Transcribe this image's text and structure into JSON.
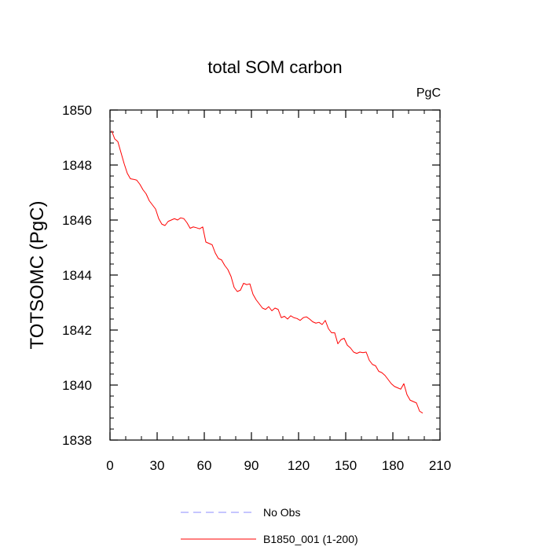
{
  "chart_data": {
    "type": "line",
    "title": "total SOM carbon",
    "units_label": "PgC",
    "xlabel": "",
    "ylabel": "TOTSOMC  (PgC)",
    "xlim": [
      0,
      210
    ],
    "ylim": [
      1838,
      1850
    ],
    "x_ticks": [
      0,
      30,
      60,
      90,
      120,
      150,
      180,
      210
    ],
    "x_tick_labels": [
      "0",
      "30",
      "60",
      "90",
      "120",
      "150",
      "180",
      "210"
    ],
    "y_ticks": [
      1838,
      1840,
      1842,
      1844,
      1846,
      1848,
      1850
    ],
    "y_tick_labels": [
      "1838",
      "1840",
      "1842",
      "1844",
      "1846",
      "1848",
      "1850"
    ],
    "x_minor_step": 10,
    "y_minor_step": 0.4,
    "grid": false,
    "legend_position": "bottom-center",
    "legend": [
      {
        "label": "No Obs",
        "color": "#8c8cff",
        "dash": "dashed"
      },
      {
        "label": "B1850_001 (1-200)",
        "color": "#ff0000",
        "dash": "solid"
      }
    ],
    "series": [
      {
        "name": "B1850_001 (1-200)",
        "color": "#ff0000",
        "x": [
          1,
          3,
          5,
          7,
          9,
          11,
          13,
          15,
          17,
          19,
          21,
          23,
          25,
          27,
          29,
          31,
          33,
          35,
          37,
          39,
          41,
          43,
          45,
          47,
          49,
          51,
          53,
          55,
          57,
          59,
          61,
          63,
          65,
          67,
          69,
          71,
          73,
          75,
          77,
          79,
          81,
          83,
          85,
          87,
          89,
          91,
          93,
          95,
          97,
          99,
          101,
          103,
          105,
          107,
          109,
          111,
          113,
          115,
          117,
          119,
          121,
          123,
          125,
          127,
          129,
          131,
          133,
          135,
          137,
          139,
          141,
          143,
          145,
          147,
          149,
          151,
          153,
          155,
          157,
          159,
          161,
          163,
          165,
          167,
          169,
          171,
          173,
          175,
          177,
          179,
          181,
          183,
          185,
          187,
          189,
          191,
          193,
          195,
          197,
          199
        ],
        "values": [
          1849.25,
          1848.95,
          1848.85,
          1848.45,
          1848.05,
          1847.7,
          1847.5,
          1847.48,
          1847.45,
          1847.3,
          1847.1,
          1846.95,
          1846.7,
          1846.55,
          1846.4,
          1846.05,
          1845.85,
          1845.8,
          1845.95,
          1846.0,
          1846.05,
          1846.0,
          1846.08,
          1846.05,
          1845.9,
          1845.7,
          1845.75,
          1845.72,
          1845.68,
          1845.75,
          1845.2,
          1845.15,
          1845.1,
          1844.8,
          1844.6,
          1844.55,
          1844.35,
          1844.2,
          1843.95,
          1843.55,
          1843.4,
          1843.45,
          1843.7,
          1843.65,
          1843.68,
          1843.3,
          1843.1,
          1842.95,
          1842.8,
          1842.75,
          1842.85,
          1842.7,
          1842.8,
          1842.75,
          1842.45,
          1842.5,
          1842.4,
          1842.52,
          1842.45,
          1842.42,
          1842.35,
          1842.45,
          1842.48,
          1842.4,
          1842.3,
          1842.25,
          1842.28,
          1842.2,
          1842.35,
          1842.05,
          1841.9,
          1841.9,
          1841.5,
          1841.65,
          1841.7,
          1841.45,
          1841.35,
          1841.2,
          1841.15,
          1841.2,
          1841.18,
          1841.2,
          1840.9,
          1840.75,
          1840.7,
          1840.5,
          1840.45,
          1840.35,
          1840.2,
          1840.05,
          1839.95,
          1839.9,
          1839.85,
          1840.05,
          1839.65,
          1839.45,
          1839.4,
          1839.35,
          1839.05,
          1838.98
        ]
      }
    ]
  }
}
